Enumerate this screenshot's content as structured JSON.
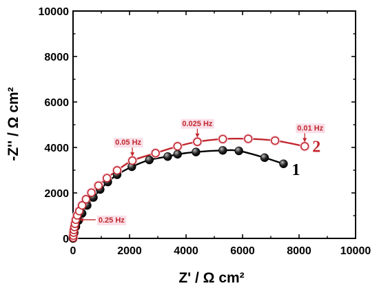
{
  "chart_data": {
    "type": "scatter",
    "title": "",
    "xlabel": "Z' / Ω cm²",
    "ylabel": "-Z'' / Ω cm²",
    "xlim": [
      0,
      10000
    ],
    "ylim": [
      0,
      10000
    ],
    "x_ticks": [
      "0",
      "2000",
      "4000",
      "6000",
      "8000",
      "10000"
    ],
    "y_ticks": [
      "0",
      "2000",
      "4000",
      "6000",
      "8000",
      "10000"
    ],
    "grid": false,
    "series": [
      {
        "name": "1",
        "color": "#000000",
        "marker": "filled-circle",
        "x": [
          0,
          40,
          100,
          190,
          320,
          500,
          720,
          960,
          1230,
          1560,
          2080,
          2700,
          3350,
          3700,
          4350,
          5300,
          5870,
          6780,
          7450
        ],
        "y": [
          0,
          250,
          520,
          780,
          1100,
          1450,
          1800,
          2150,
          2480,
          2800,
          3150,
          3450,
          3600,
          3700,
          3800,
          3870,
          3850,
          3550,
          3280
        ]
      },
      {
        "name": "2",
        "color": "#c0272d",
        "marker": "open-circle",
        "x": [
          5,
          10,
          20,
          30,
          50,
          70,
          100,
          150,
          220,
          320,
          460,
          650,
          900,
          1200,
          1560,
          2100,
          2920,
          3700,
          4400,
          5300,
          6200,
          7150,
          8200
        ],
        "y": [
          30,
          120,
          250,
          370,
          500,
          640,
          820,
          1010,
          1200,
          1450,
          1720,
          2010,
          2320,
          2650,
          2990,
          3420,
          3750,
          4050,
          4250,
          4370,
          4380,
          4300,
          4050
        ]
      }
    ],
    "annotations": [
      {
        "text": "0.25 Hz",
        "x": 70,
        "y": 820
      },
      {
        "text": "0.05 Hz",
        "x": 2100,
        "y": 3420
      },
      {
        "text": "0.025 Hz",
        "x": 4400,
        "y": 4250
      },
      {
        "text": "0.01 Hz",
        "x": 8200,
        "y": 4050
      }
    ]
  }
}
